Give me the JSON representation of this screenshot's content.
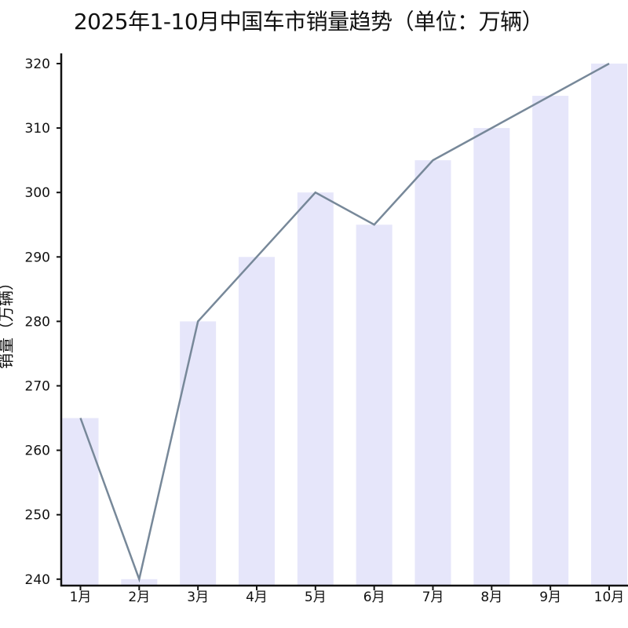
{
  "chart_data": {
    "type": "bar",
    "title": "2025年1-10月中国车市销量趋势（单位：万辆）",
    "ylabel": "销量（万辆）",
    "xlabel": "",
    "categories": [
      "1月",
      "2月",
      "3月",
      "4月",
      "5月",
      "6月",
      "7月",
      "8月",
      "9月",
      "10月"
    ],
    "series": [
      {
        "type": "bar",
        "values": [
          265,
          240,
          280,
          290,
          300,
          295,
          305,
          310,
          315,
          320
        ]
      },
      {
        "type": "line",
        "values": [
          265,
          240,
          280,
          290,
          300,
          295,
          305,
          310,
          315,
          320
        ]
      }
    ],
    "yticks": [
      240,
      250,
      260,
      270,
      280,
      290,
      300,
      310,
      320
    ],
    "ylim": [
      239,
      320
    ],
    "grid": false,
    "colors": {
      "bar": "#e6e6fa",
      "line": "#778899",
      "axis": "#111111"
    }
  }
}
